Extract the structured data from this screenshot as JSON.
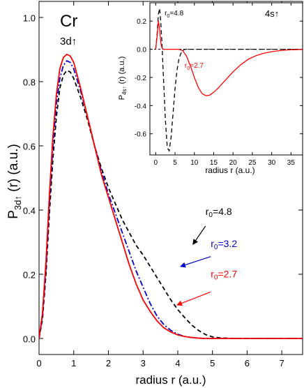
{
  "chart_data": [
    {
      "type": "line",
      "panel": "main",
      "element_label": "Cr",
      "orbital_label": "3d↑",
      "ylabel": "P3d↑ (r) (a.u.)",
      "ylabel_parts": {
        "base": "P",
        "sub": "3d",
        "arrow": "↑",
        "rest": " (r)  (a.u.)"
      },
      "xlabel": "radius r (a.u.)",
      "xlim": [
        0,
        7.6
      ],
      "ylim": [
        -0.05,
        1.05
      ],
      "xticks": [
        0,
        1,
        2,
        3,
        4,
        5,
        6,
        7
      ],
      "xtick_labels": [
        "0",
        "1",
        "2",
        "3",
        "4",
        "5",
        "6",
        "7"
      ],
      "yticks": [
        0.0,
        0.2,
        0.4,
        0.6,
        0.8,
        1.0
      ],
      "ytick_labels": [
        "0.0",
        "0.2",
        "0.4",
        "0.6",
        "0.8",
        "1.0"
      ],
      "grid": false,
      "series": [
        {
          "name": "r0=4.8",
          "color": "#000000",
          "dash": "dashed",
          "x": [
            0,
            0.1,
            0.2,
            0.3,
            0.4,
            0.5,
            0.6,
            0.7,
            0.8,
            0.9,
            1.0,
            1.2,
            1.4,
            1.6,
            1.8,
            2.0,
            2.2,
            2.4,
            2.6,
            2.8,
            3.0,
            3.2,
            3.4,
            3.6,
            3.8,
            4.0,
            4.2,
            4.4,
            4.6,
            4.8,
            5.0,
            5.2,
            5.4,
            5.6,
            6.0,
            6.4,
            7.0,
            7.6
          ],
          "y": [
            0.0,
            0.06,
            0.2,
            0.39,
            0.56,
            0.69,
            0.78,
            0.82,
            0.835,
            0.83,
            0.81,
            0.75,
            0.68,
            0.6,
            0.53,
            0.47,
            0.42,
            0.37,
            0.33,
            0.29,
            0.26,
            0.225,
            0.19,
            0.155,
            0.12,
            0.09,
            0.065,
            0.042,
            0.025,
            0.012,
            0.005,
            0.002,
            0.001,
            0.0,
            0.0,
            0.0,
            0.0,
            0.0
          ]
        },
        {
          "name": "r0=3.2",
          "color": "#0000cc",
          "dash": "dashdot",
          "x": [
            0,
            0.1,
            0.2,
            0.3,
            0.4,
            0.5,
            0.6,
            0.7,
            0.8,
            0.9,
            1.0,
            1.2,
            1.4,
            1.6,
            1.8,
            2.0,
            2.2,
            2.4,
            2.6,
            2.8,
            3.0,
            3.2,
            3.4,
            3.6,
            3.8,
            4.0,
            4.2,
            4.4,
            4.6,
            4.8,
            5.0,
            5.4,
            6.0,
            7.0,
            7.6
          ],
          "y": [
            0.0,
            0.07,
            0.22,
            0.42,
            0.6,
            0.73,
            0.81,
            0.85,
            0.865,
            0.86,
            0.84,
            0.77,
            0.69,
            0.6,
            0.52,
            0.45,
            0.39,
            0.33,
            0.27,
            0.21,
            0.16,
            0.11,
            0.07,
            0.043,
            0.025,
            0.013,
            0.006,
            0.003,
            0.001,
            0.0,
            0.0,
            0.0,
            0.0,
            0.0,
            0.0
          ]
        },
        {
          "name": "r0=2.7",
          "color": "#ff0000",
          "dash": "solid",
          "x": [
            0,
            0.1,
            0.2,
            0.3,
            0.4,
            0.5,
            0.6,
            0.7,
            0.8,
            0.9,
            1.0,
            1.2,
            1.4,
            1.6,
            1.8,
            2.0,
            2.2,
            2.4,
            2.6,
            2.8,
            3.0,
            3.2,
            3.4,
            3.6,
            3.8,
            4.0,
            4.2,
            4.4,
            4.6,
            4.8,
            5.0,
            5.4,
            6.0,
            7.0,
            7.6
          ],
          "y": [
            0.0,
            0.08,
            0.24,
            0.45,
            0.63,
            0.76,
            0.84,
            0.875,
            0.885,
            0.88,
            0.86,
            0.78,
            0.69,
            0.6,
            0.51,
            0.44,
            0.37,
            0.3,
            0.23,
            0.17,
            0.12,
            0.085,
            0.055,
            0.033,
            0.02,
            0.011,
            0.006,
            0.003,
            0.001,
            0.0,
            0.0,
            0.0,
            0.0,
            0.0,
            0.0
          ]
        }
      ],
      "annotations": [
        {
          "series": "r0=4.8",
          "text_base": "r",
          "text_sub": "0",
          "text_rest": "=4.8",
          "color": "#000000",
          "text_at": [
            4.8,
            0.385
          ],
          "arrow_from": [
            4.8,
            0.35
          ],
          "arrow_to": [
            4.45,
            0.295
          ]
        },
        {
          "series": "r0=3.2",
          "text_base": "r",
          "text_sub": "0",
          "text_rest": "=3.2",
          "color": "#0000cc",
          "text_at": [
            4.95,
            0.285
          ],
          "arrow_from": [
            4.95,
            0.255
          ],
          "arrow_to": [
            4.1,
            0.225
          ]
        },
        {
          "series": "r0=2.7",
          "text_base": "r",
          "text_sub": "0",
          "text_rest": "=2.7",
          "color": "#ff0000",
          "text_at": [
            4.95,
            0.19
          ],
          "arrow_from": [
            4.95,
            0.145
          ],
          "arrow_to": [
            4.0,
            0.105
          ]
        }
      ]
    },
    {
      "type": "line",
      "panel": "inset",
      "orbital_label": "4s↑",
      "ylabel": "P4s↑ (r) (a.u.)",
      "ylabel_parts": {
        "base": "P",
        "sub": "4s",
        "arrow": "↑",
        "rest": " (r) (a.u.)"
      },
      "xlabel": "radius r (a.u.)",
      "xlim": [
        -1.5,
        38
      ],
      "ylim": [
        -0.75,
        0.33
      ],
      "xticks": [
        0,
        5,
        10,
        15,
        20,
        25,
        30,
        35
      ],
      "xtick_labels": [
        "0",
        "5",
        "10",
        "15",
        "20",
        "25",
        "30",
        "35"
      ],
      "yticks": [
        0.2,
        0.0,
        -0.2,
        -0.4,
        -0.6
      ],
      "ytick_labels": [
        "0.2",
        "0.0",
        "-0.2",
        "-0.4",
        "-0.6"
      ],
      "grid": false,
      "zero_line": true,
      "series": [
        {
          "name": "r0=4.8",
          "color": "#000000",
          "dash": "dashed",
          "x": [
            0,
            0.4,
            0.7,
            1.0,
            1.3,
            1.6,
            2.0,
            2.5,
            3.0,
            3.5,
            4.0,
            4.5,
            5.0,
            5.5,
            6.0,
            6.5,
            7.0,
            7.5,
            8.0,
            9.0,
            10.0,
            38
          ],
          "y": [
            0.0,
            0.12,
            0.25,
            0.29,
            0.2,
            0.05,
            -0.2,
            -0.5,
            -0.7,
            -0.72,
            -0.62,
            -0.45,
            -0.28,
            -0.15,
            -0.07,
            -0.03,
            -0.01,
            0.0,
            0.0,
            0.0,
            0.0,
            0.0
          ]
        },
        {
          "name": "r0=2.7",
          "color": "#ff0000",
          "dash": "solid",
          "x": [
            0,
            0.4,
            0.7,
            1.0,
            1.3,
            1.6,
            2.0,
            2.5,
            3.0,
            4.0,
            5.0,
            6.0,
            7.0,
            8.0,
            9.0,
            10.0,
            11.0,
            12.0,
            13.0,
            14.0,
            15.0,
            16.0,
            17.0,
            18.0,
            20.0,
            22.0,
            24.0,
            26.0,
            28.0,
            30.0,
            32.0,
            34.0,
            36.0,
            38.0
          ],
          "y": [
            0.0,
            0.1,
            0.2,
            0.15,
            0.05,
            0.01,
            0.0,
            0.0,
            0.0,
            0.0,
            0.0,
            0.0,
            -0.01,
            -0.05,
            -0.12,
            -0.2,
            -0.27,
            -0.315,
            -0.33,
            -0.325,
            -0.305,
            -0.28,
            -0.25,
            -0.22,
            -0.16,
            -0.11,
            -0.07,
            -0.045,
            -0.028,
            -0.017,
            -0.01,
            -0.005,
            -0.003,
            -0.001
          ]
        }
      ],
      "annotations": [
        {
          "series": "r0=4.8",
          "text_base": "r",
          "text_sub": "0",
          "text_rest": "=4.8",
          "color": "#000000",
          "text_at": [
            2.3,
            0.24
          ]
        },
        {
          "series": "r0=2.7",
          "text_base": "r",
          "text_sub": "0",
          "text_rest": "=2.7",
          "color": "#ff0000",
          "text_at": [
            7.5,
            -0.13
          ]
        }
      ]
    }
  ]
}
